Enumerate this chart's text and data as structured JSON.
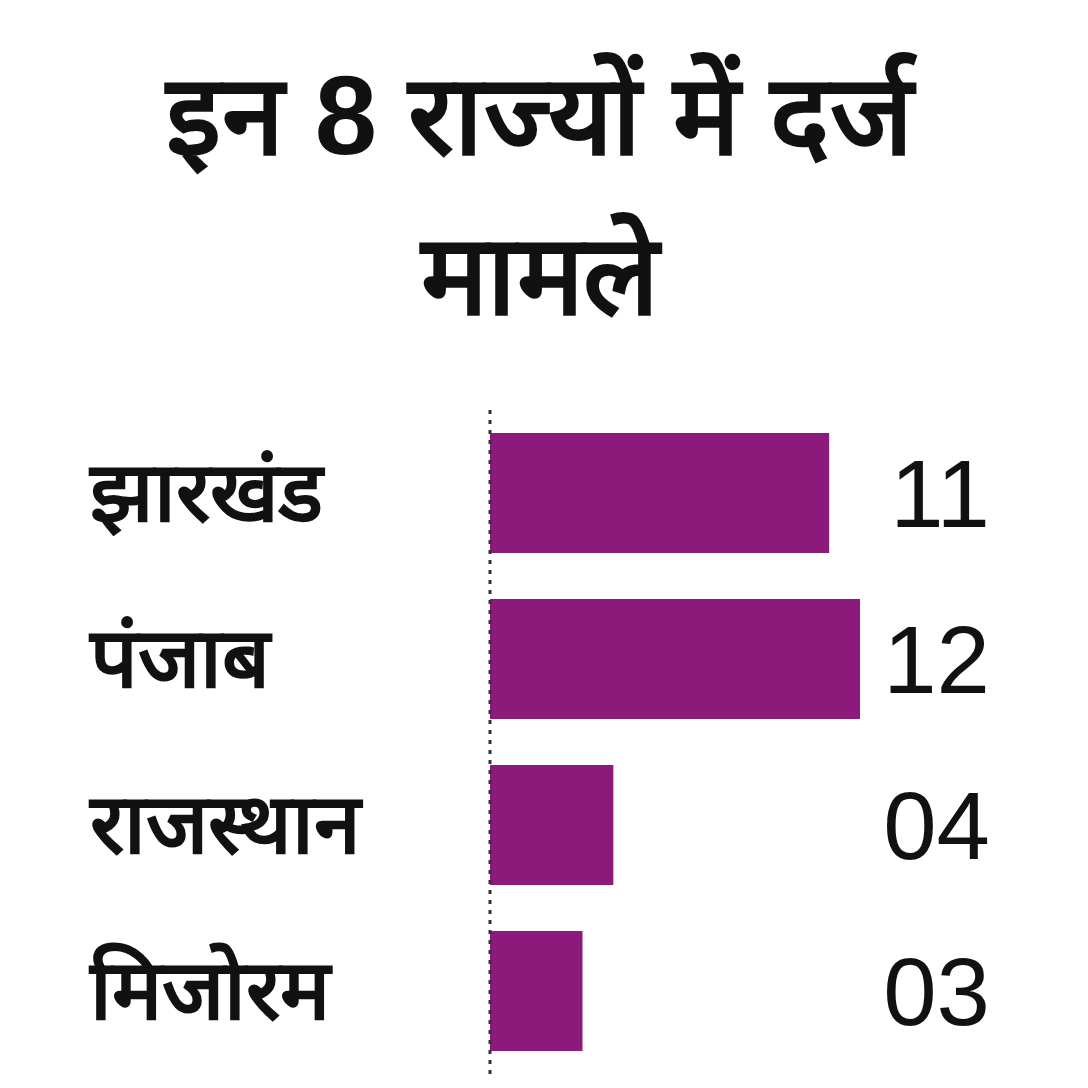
{
  "chart_data": {
    "type": "bar",
    "orientation": "horizontal",
    "title": "इन 8 राज्यों में दर्ज मामले",
    "categories": [
      "झारखंड",
      "पंजाब",
      "राजस्थान",
      "मिजोरम"
    ],
    "values": [
      11,
      12,
      4,
      3
    ],
    "value_labels": [
      "11",
      "12",
      "04",
      "03"
    ],
    "color": "#8b1a7b"
  }
}
